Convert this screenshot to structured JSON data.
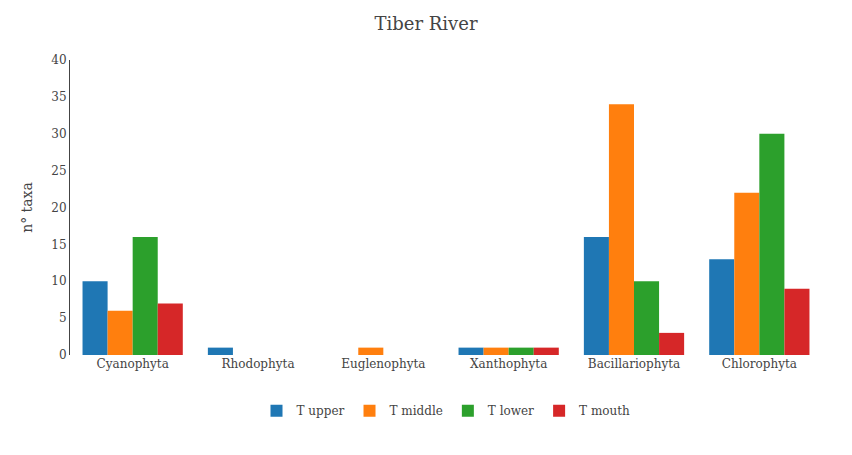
{
  "chart_data": {
    "type": "bar",
    "title": "Tiber River",
    "ylabel": "n° taxa",
    "categories": [
      "Cyanophyta",
      "Rhodophyta",
      "Euglenophyta",
      "Xanthophyta",
      "Bacillariophyta",
      "Chlorophyta"
    ],
    "series": [
      {
        "name": "T upper",
        "values": [
          10,
          1,
          0,
          1,
          16,
          13
        ]
      },
      {
        "name": "T middle",
        "values": [
          6,
          0,
          1,
          1,
          34,
          22
        ]
      },
      {
        "name": "T lower",
        "values": [
          16,
          0,
          0,
          1,
          10,
          30
        ]
      },
      {
        "name": "T mouth",
        "values": [
          7,
          0,
          0,
          1,
          3,
          9
        ]
      }
    ],
    "ylim": [
      0,
      40
    ],
    "yticks": [
      0,
      5,
      10,
      15,
      20,
      25,
      30,
      35,
      40
    ],
    "grid": false,
    "legend": "bottom"
  }
}
